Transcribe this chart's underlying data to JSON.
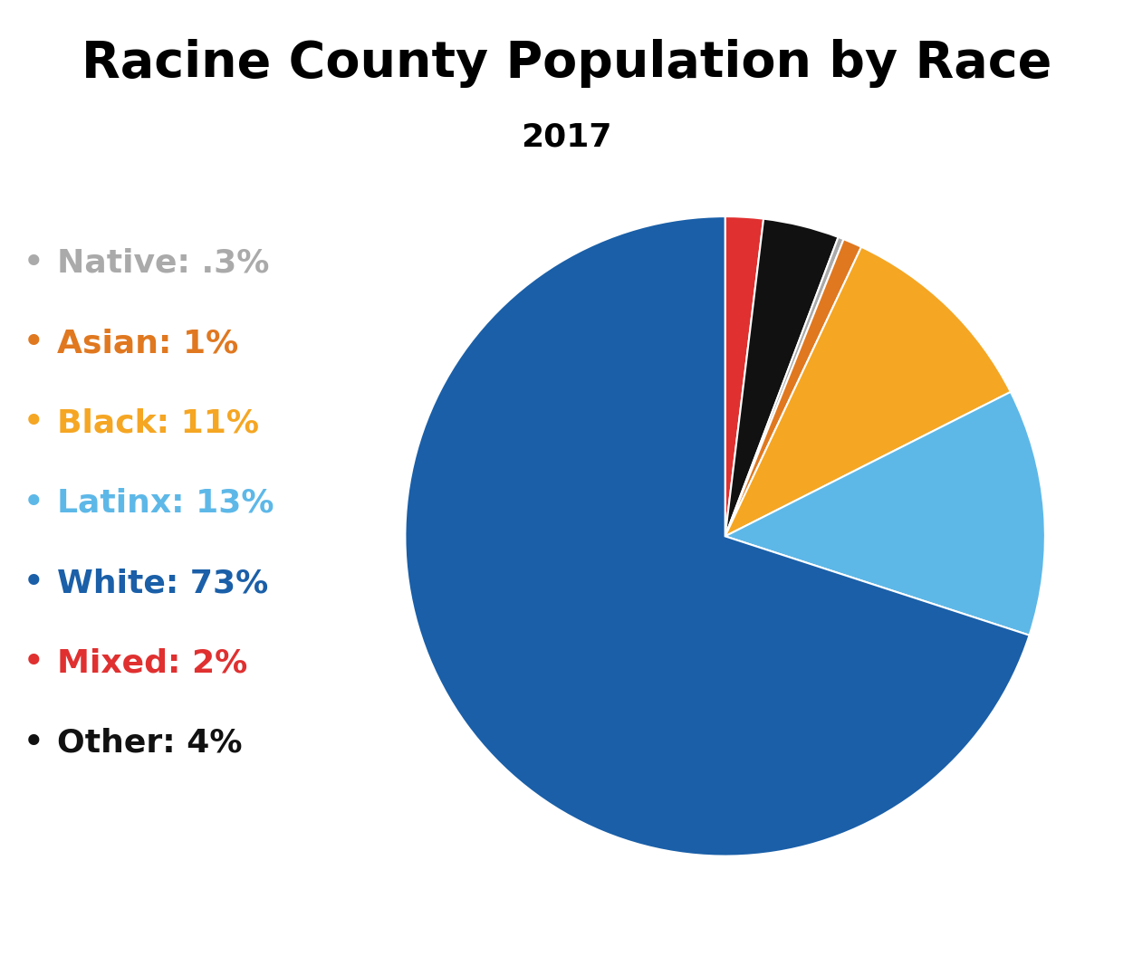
{
  "title": "Racine County Population by Race",
  "subtitle": "2017",
  "wedge_labels": [
    "White",
    "Latinx",
    "Black",
    "Asian",
    "Native",
    "Other",
    "Mixed"
  ],
  "wedge_values": [
    73,
    13,
    11,
    1,
    0.3,
    4,
    2
  ],
  "wedge_colors": [
    "#1a5fa8",
    "#5db8e8",
    "#f5a623",
    "#e07820",
    "#aaaaaa",
    "#111111",
    "#e03030"
  ],
  "legend_labels": [
    "Native: .3%",
    "Asian: 1%",
    "Black: 11%",
    "Latinx: 13%",
    "White: 73%",
    "Mixed: 2%",
    "Other: 4%"
  ],
  "legend_colors": [
    "#aaaaaa",
    "#e07820",
    "#f5a623",
    "#5db8e8",
    "#1a5fa8",
    "#e03030",
    "#111111"
  ],
  "background_color": "#ffffff",
  "title_fontsize": 40,
  "subtitle_fontsize": 26,
  "legend_fontsize": 26
}
